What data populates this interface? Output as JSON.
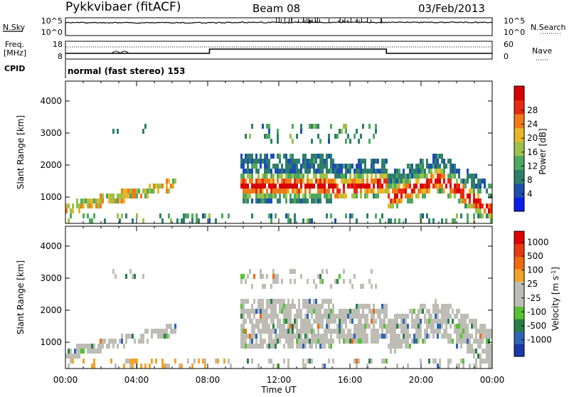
{
  "header": {
    "station": "Pykkvibaer (fitACF)",
    "beam": "Beam 08",
    "date": "03/Feb/2013"
  },
  "noise_panel": {
    "left_label": "N.Sky",
    "right_label": "N.Search",
    "left_ticks": [
      "10^5",
      "10^0"
    ],
    "right_ticks": [
      "10^5",
      "10^0"
    ]
  },
  "freq_panel": {
    "left_label_1": "Freq.",
    "left_label_2": "[MHz]",
    "right_label": "Nave",
    "left_ticks": [
      "18",
      "8"
    ],
    "right_ticks": [
      "60",
      "0"
    ]
  },
  "cpid": {
    "label": "CPID",
    "text": "normal (fast stereo) 153"
  },
  "chart_data": [
    {
      "type": "heatmap",
      "title": "",
      "xlabel": "Time UT",
      "ylabel": "Slant Range [km]",
      "x_ticks": [
        "00:00",
        "04:00",
        "08:00",
        "12:00",
        "16:00",
        "20:00",
        "00:00"
      ],
      "y_ticks": [
        1000,
        2000,
        3000,
        4000
      ],
      "ylim": [
        180,
        4620
      ],
      "colorbar": {
        "label": "Power [dB]",
        "ticks": [
          4,
          8,
          12,
          16,
          20,
          24,
          28
        ],
        "colors": [
          "#0a1ef0",
          "#1e4fb0",
          "#2e7f6a",
          "#4fa860",
          "#9bc24a",
          "#e8b82a",
          "#f07a1a",
          "#e82a10",
          "#d80000"
        ]
      }
    },
    {
      "type": "heatmap",
      "title": "",
      "xlabel": "Time UT",
      "ylabel": "Slant Range [km]",
      "x_ticks": [
        "00:00",
        "04:00",
        "08:00",
        "12:00",
        "16:00",
        "20:00",
        "00:00"
      ],
      "y_ticks": [
        1000,
        2000,
        3000,
        4000
      ],
      "ylim": [
        180,
        4620
      ],
      "colorbar": {
        "label": "Velocity [m s",
        "label_sup": "-1",
        "label_end": "]",
        "ticks": [
          "1000",
          "500",
          "100",
          "25",
          "-25",
          "-100",
          "-500",
          "-1000"
        ],
        "colors": [
          "#1a36a8",
          "#2f64b8",
          "#2a7f48",
          "#56c232",
          "#bdbdb6",
          "#bdbdb6",
          "#f2a42a",
          "#f06a10",
          "#e83a10",
          "#e00000"
        ]
      }
    }
  ]
}
